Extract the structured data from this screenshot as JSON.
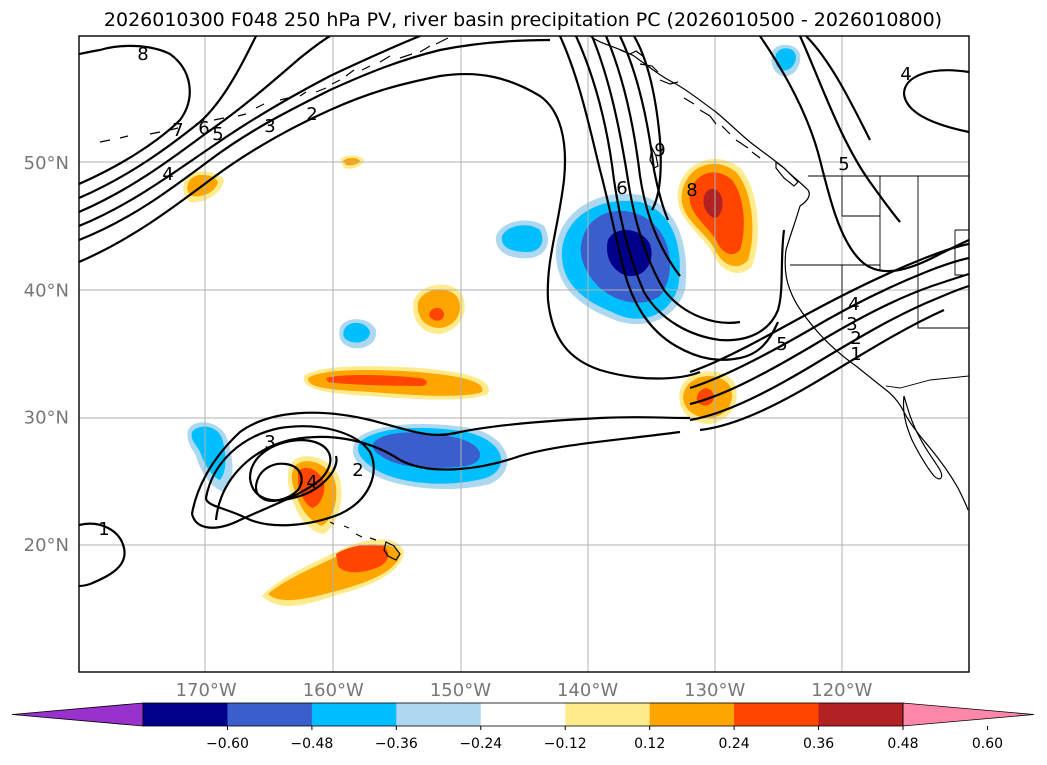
{
  "title": "2026010300 F048 250 hPa PV, river basin precipitation PC (2026010500 - 2026010800)",
  "map": {
    "projection": "plate-carree",
    "lon_range": [
      -180,
      -110
    ],
    "lat_range": [
      10,
      60
    ],
    "lat_ticks": [
      {
        "value": 20,
        "label": "20°N"
      },
      {
        "value": 30,
        "label": "30°N"
      },
      {
        "value": 40,
        "label": "40°N"
      },
      {
        "value": 50,
        "label": "50°N"
      }
    ],
    "lon_ticks": [
      {
        "value": -170,
        "label": "170°W"
      },
      {
        "value": -160,
        "label": "160°W"
      },
      {
        "value": -150,
        "label": "150°W"
      },
      {
        "value": -140,
        "label": "140°W"
      },
      {
        "value": -130,
        "label": "130°W"
      },
      {
        "value": -120,
        "label": "120°W"
      }
    ]
  },
  "colorbar": {
    "extend": "both",
    "ticks": [
      "−0.60",
      "−0.48",
      "−0.36",
      "−0.24",
      "−0.12",
      "0.12",
      "0.24",
      "0.36",
      "0.48",
      "0.60"
    ],
    "colors": [
      "#9932cc",
      "#00008b",
      "#3a5fcd",
      "#00bfff",
      "#add8f0",
      "#ffffff",
      "#ffeb8c",
      "#ffa500",
      "#ff4500",
      "#b22222",
      "#ff88aa"
    ]
  },
  "contour_labels": [
    "8",
    "7",
    "6",
    "5",
    "3",
    "2",
    "4",
    "1",
    "3",
    "4",
    "2",
    "9",
    "6",
    "8",
    "5",
    "5",
    "4",
    "3",
    "2",
    "1",
    "4"
  ]
}
